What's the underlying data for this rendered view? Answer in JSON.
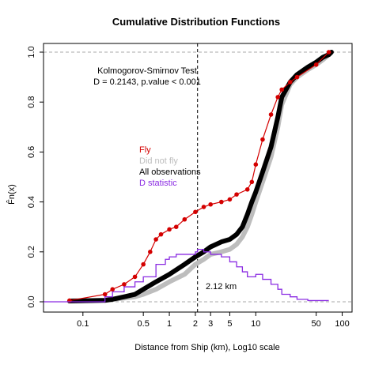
{
  "chart_data": {
    "type": "line",
    "title": "Cumulative Distribution Functions",
    "xlabel": "Distance from Ship (km), Log10 scale",
    "ylabel": "F̂n(x)",
    "x_scale": "log",
    "xlim": [
      0.035,
      130
    ],
    "ylim": [
      0,
      1
    ],
    "x_ticks": [
      0.1,
      0.5,
      1,
      2,
      3,
      5,
      10,
      50,
      100
    ],
    "x_tick_labels": [
      "0.1",
      "0.5",
      "1",
      "2",
      "3",
      "5",
      "10",
      "50",
      "100"
    ],
    "y_ticks": [
      0,
      0.2,
      0.4,
      0.6,
      0.8,
      1
    ],
    "y_tick_labels": [
      "0.0",
      "0.2",
      "0.4",
      "0.6",
      "0.8",
      "1.0"
    ],
    "test_title": "Kolmogorov-Smirnov Test",
    "test_result": "D = 0.2143, p.value < 0.001",
    "d_location_label": "2.12 km",
    "d_location_x": 2.12,
    "legend": [
      {
        "label": "Fly",
        "color": "#d40000"
      },
      {
        "label": "Did not fly",
        "color": "#bdbdbd"
      },
      {
        "label": "All observations",
        "color": "#000000"
      },
      {
        "label": "D statistic",
        "color": "#8a2be2"
      }
    ],
    "series": [
      {
        "name": "Did not fly",
        "color": "#bdbdbd",
        "x": [
          0.18,
          0.22,
          0.3,
          0.4,
          0.5,
          0.7,
          1.0,
          1.5,
          2.0,
          2.5,
          3.0,
          4.0,
          5.0,
          6.0,
          7.0,
          8.0,
          9.0,
          10.0,
          12.0,
          15.0,
          18.0,
          20.0,
          25.0,
          30.0,
          40.0,
          50.0,
          60.0,
          70.0,
          75.0
        ],
        "y": [
          0.005,
          0.01,
          0.015,
          0.02,
          0.03,
          0.05,
          0.08,
          0.11,
          0.15,
          0.17,
          0.19,
          0.2,
          0.21,
          0.23,
          0.26,
          0.3,
          0.35,
          0.4,
          0.48,
          0.58,
          0.7,
          0.79,
          0.87,
          0.9,
          0.93,
          0.95,
          0.97,
          0.99,
          1.0
        ]
      },
      {
        "name": "All observations",
        "color": "#000000",
        "x": [
          0.07,
          0.18,
          0.22,
          0.3,
          0.4,
          0.5,
          0.7,
          1.0,
          1.5,
          2.0,
          2.5,
          3.0,
          4.0,
          5.0,
          6.0,
          7.0,
          8.0,
          9.0,
          10.0,
          12.0,
          15.0,
          18.0,
          20.0,
          25.0,
          30.0,
          40.0,
          50.0,
          60.0,
          70.0,
          75.0
        ],
        "y": [
          0.003,
          0.006,
          0.01,
          0.02,
          0.03,
          0.05,
          0.08,
          0.11,
          0.15,
          0.18,
          0.2,
          0.22,
          0.24,
          0.25,
          0.27,
          0.3,
          0.35,
          0.4,
          0.44,
          0.52,
          0.62,
          0.74,
          0.82,
          0.88,
          0.91,
          0.94,
          0.96,
          0.98,
          0.99,
          1.0
        ]
      },
      {
        "name": "Fly",
        "color": "#d40000",
        "x": [
          0.07,
          0.18,
          0.22,
          0.3,
          0.4,
          0.5,
          0.6,
          0.7,
          0.8,
          1.0,
          1.2,
          1.5,
          2.0,
          2.5,
          3.0,
          4.0,
          5.0,
          6.0,
          8.0,
          9.0,
          10.0,
          12.0,
          15.0,
          18.0,
          20.0,
          25.0,
          30.0,
          50.0,
          70.0
        ],
        "y": [
          0.005,
          0.03,
          0.05,
          0.07,
          0.1,
          0.15,
          0.2,
          0.25,
          0.27,
          0.29,
          0.3,
          0.33,
          0.36,
          0.38,
          0.39,
          0.4,
          0.41,
          0.43,
          0.45,
          0.48,
          0.55,
          0.65,
          0.75,
          0.82,
          0.85,
          0.88,
          0.9,
          0.95,
          1.0
        ]
      },
      {
        "name": "D statistic",
        "color": "#8a2be2",
        "x": [
          0.035,
          0.18,
          0.22,
          0.3,
          0.4,
          0.5,
          0.7,
          0.9,
          1.0,
          1.2,
          1.5,
          2.0,
          2.12,
          2.5,
          3.0,
          4.0,
          5.0,
          6.0,
          7.0,
          8.0,
          10.0,
          12.0,
          15.0,
          18.0,
          20.0,
          25.0,
          30.0,
          40.0,
          50.0,
          60.0,
          70.0
        ],
        "y": [
          0.0,
          0.02,
          0.04,
          0.06,
          0.08,
          0.1,
          0.15,
          0.17,
          0.18,
          0.19,
          0.19,
          0.2,
          0.21,
          0.2,
          0.19,
          0.18,
          0.16,
          0.14,
          0.12,
          0.1,
          0.11,
          0.09,
          0.07,
          0.05,
          0.03,
          0.02,
          0.01,
          0.005,
          0.005,
          0.005,
          0.005
        ]
      }
    ]
  }
}
